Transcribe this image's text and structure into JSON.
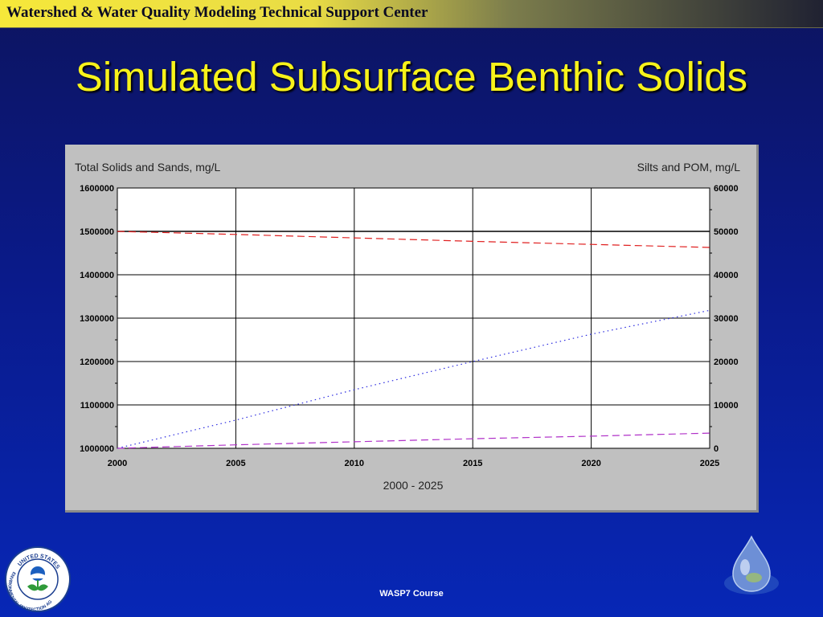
{
  "banner": {
    "text": "Watershed & Water Quality Modeling Technical Support Center"
  },
  "slide": {
    "title": "Simulated Subsurface Benthic Solids"
  },
  "footer": {
    "text": "WASP7 Course"
  },
  "logos": {
    "left": {
      "icon": "epa-seal-icon",
      "text_top": "UNITED STATES",
      "text_side": "ENVIRONMENTAL PROTECTION AGENCY"
    },
    "right": {
      "icon": "water-drop-icon"
    }
  },
  "chart_data": {
    "type": "line",
    "xlabel": "2000 - 2025",
    "ylabel_left": "Total Solids and Sands, mg/L",
    "ylabel_right": "Silts and POM, mg/L",
    "xlim": [
      2000,
      2025
    ],
    "ylim_left": [
      1000000,
      1600000
    ],
    "ylim_right": [
      0,
      60000
    ],
    "x_ticks": [
      "2000",
      "2005",
      "2010",
      "2015",
      "2020",
      "2025"
    ],
    "y_ticks_left": [
      "1600000",
      "1500000",
      "1400000",
      "1300000",
      "1200000",
      "1100000",
      "1000000"
    ],
    "y_ticks_right": [
      "60000",
      "50000",
      "40000",
      "30000",
      "20000",
      "10000",
      "0"
    ],
    "grid": true,
    "series": [
      {
        "axis": "left",
        "style": "solid",
        "color": "#000000",
        "x": [
          2000,
          2025
        ],
        "y": [
          1500000,
          1500000
        ]
      },
      {
        "axis": "left",
        "style": "dashed",
        "color": "#e02020",
        "x": [
          2000,
          2005,
          2010,
          2015,
          2020,
          2025
        ],
        "y": [
          1500000,
          1493000,
          1485000,
          1477000,
          1470000,
          1463000
        ]
      },
      {
        "axis": "right",
        "style": "dotted",
        "color": "#2a2ae0",
        "x": [
          2000,
          2005,
          2010,
          2015,
          2020,
          2025
        ],
        "y": [
          0,
          6500,
          13500,
          20000,
          26300,
          31800
        ]
      },
      {
        "axis": "right",
        "style": "dashed",
        "color": "#b030c8",
        "x": [
          2000,
          2005,
          2010,
          2015,
          2020,
          2025
        ],
        "y": [
          0,
          800,
          1500,
          2200,
          2800,
          3500
        ]
      }
    ]
  }
}
